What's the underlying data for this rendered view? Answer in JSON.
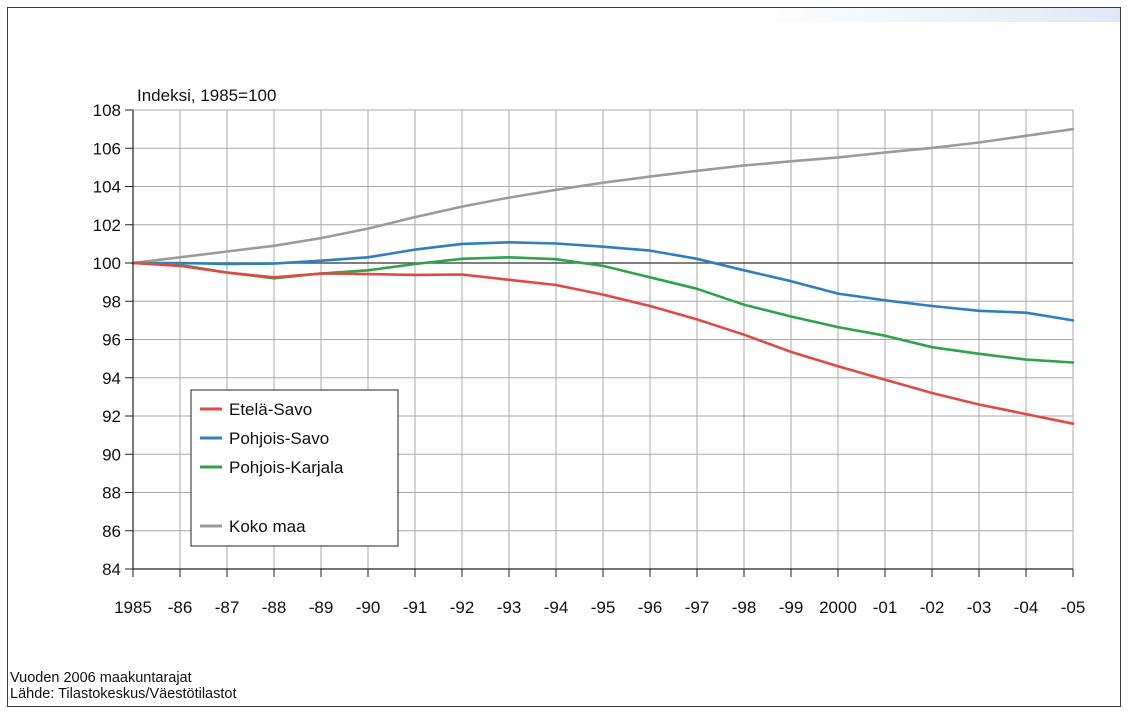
{
  "chart_data": {
    "type": "line",
    "ylabel": "Indeksi, 1985=100",
    "xlabel": "",
    "x": [
      "1985",
      "-86",
      "-87",
      "-88",
      "-89",
      "-90",
      "-91",
      "-92",
      "-93",
      "-94",
      "-95",
      "-96",
      "-97",
      "-98",
      "-99",
      "2000",
      "-01",
      "-02",
      "-03",
      "-04",
      "-05"
    ],
    "ylim": [
      84,
      108
    ],
    "yticks": [
      84,
      86,
      88,
      90,
      92,
      94,
      96,
      98,
      100,
      102,
      104,
      106,
      108
    ],
    "grid": true,
    "legend_position": "bottom-left",
    "series": [
      {
        "name": "Etelä-Savo",
        "color": "#e04a45",
        "values": [
          100,
          99.85,
          99.5,
          99.25,
          99.45,
          99.42,
          99.38,
          99.4,
          99.12,
          98.85,
          98.35,
          97.75,
          97.05,
          96.25,
          95.35,
          94.6,
          93.9,
          93.2,
          92.6,
          92.1,
          91.6
        ]
      },
      {
        "name": "Pohjois-Savo",
        "color": "#2f7fc0",
        "values": [
          100,
          100.0,
          99.95,
          99.97,
          100.12,
          100.3,
          100.7,
          101.0,
          101.08,
          101.02,
          100.85,
          100.65,
          100.22,
          99.62,
          99.05,
          98.4,
          98.05,
          97.75,
          97.5,
          97.4,
          97.0
        ]
      },
      {
        "name": "Pohjois-Karjala",
        "color": "#2ea34c",
        "values": [
          100,
          99.9,
          99.5,
          99.2,
          99.45,
          99.62,
          99.95,
          100.22,
          100.3,
          100.2,
          99.85,
          99.25,
          98.65,
          97.82,
          97.2,
          96.65,
          96.2,
          95.6,
          95.25,
          94.95,
          94.8
        ]
      },
      {
        "name": "Koko maa",
        "color": "#9b9b9b",
        "values": [
          100,
          100.3,
          100.6,
          100.9,
          101.3,
          101.8,
          102.4,
          102.95,
          103.42,
          103.82,
          104.2,
          104.52,
          104.82,
          105.1,
          105.32,
          105.52,
          105.78,
          106.02,
          106.3,
          106.65,
          107.0
        ]
      }
    ]
  },
  "footnotes": {
    "line1": "Vuoden 2006 maakuntarajat",
    "line2": "Lähde: Tilastokeskus/Väestötilastot"
  }
}
